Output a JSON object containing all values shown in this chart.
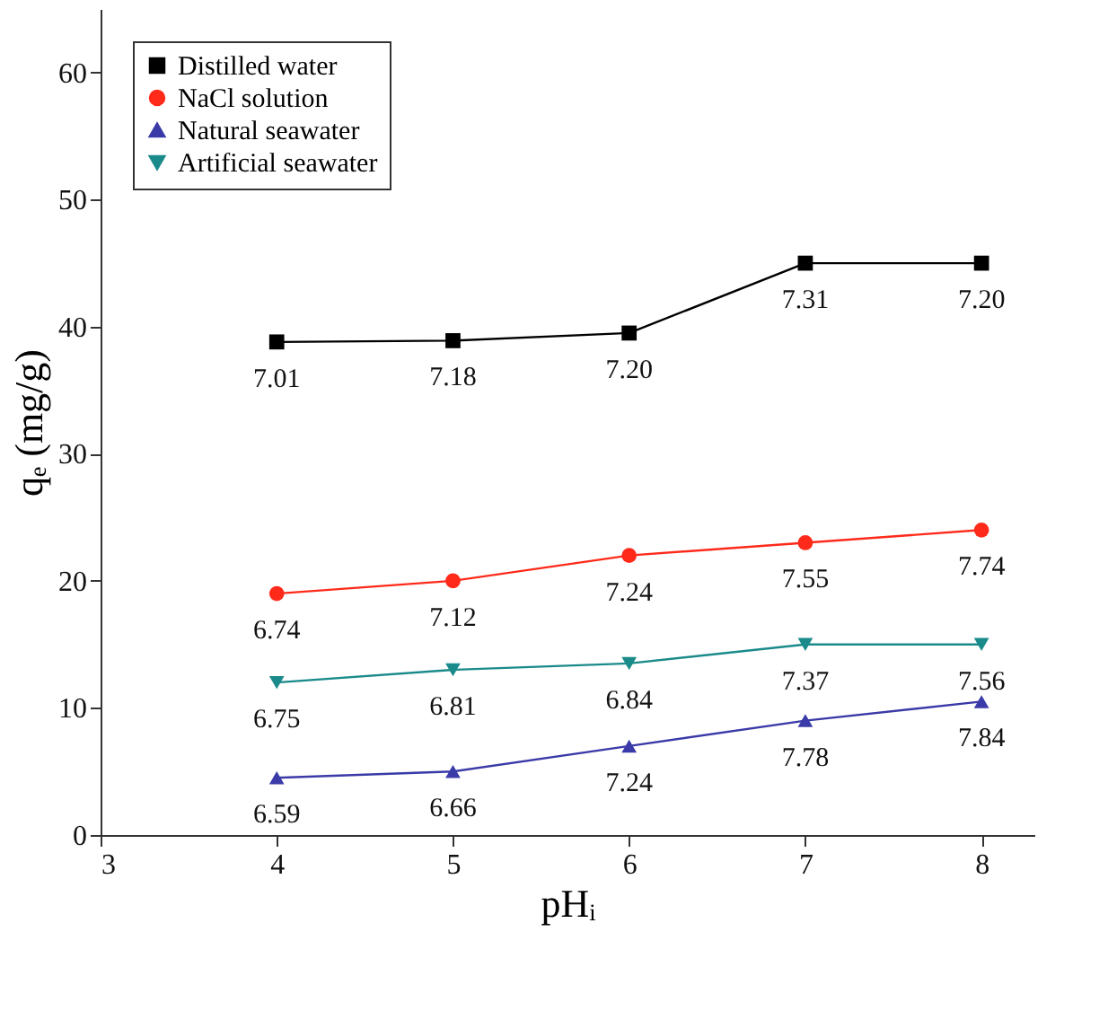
{
  "chart_data": {
    "type": "line",
    "xlabel": "pHᵢ",
    "ylabel": "qₑ (mg/g)",
    "x": [
      4,
      5,
      6,
      7,
      8
    ],
    "xlim": [
      3,
      8.3
    ],
    "xticks": [
      3,
      4,
      5,
      6,
      7,
      8
    ],
    "ylim": [
      0,
      65
    ],
    "yticks": [
      0,
      10,
      20,
      30,
      40,
      50,
      60
    ],
    "grid": false,
    "legend": "top left",
    "line_style": "solid",
    "series": [
      {
        "name": "Distilled water",
        "color": "#000000",
        "marker": "square",
        "values": [
          38.8,
          38.9,
          39.5,
          45,
          45
        ]
      },
      {
        "name": "NaCl solution",
        "color": "#ff2a1a",
        "marker": "circle",
        "values": [
          19,
          20,
          22,
          23,
          24
        ]
      },
      {
        "name": "Natural seawater",
        "color": "#3a3aa8",
        "marker": "triangle",
        "values": [
          4.5,
          5,
          7,
          9,
          10.5
        ]
      },
      {
        "name": "Artificial seawater",
        "color": "#1a8a8a",
        "marker": "triangle-down",
        "values": [
          12,
          13,
          13.5,
          15,
          15
        ]
      }
    ],
    "annotations": [
      {
        "text": "7.01",
        "x": 4,
        "y": 38.8
      },
      {
        "text": "7.18",
        "x": 5,
        "y": 38.9
      },
      {
        "text": "7.20",
        "x": 6,
        "y": 39.5
      },
      {
        "text": "7.31",
        "x": 7,
        "y": 45
      },
      {
        "text": "7.20",
        "x": 8,
        "y": 45
      },
      {
        "text": "6.74",
        "x": 4,
        "y": 19
      },
      {
        "text": "7.12",
        "x": 5,
        "y": 20
      },
      {
        "text": "7.24",
        "x": 6,
        "y": 22
      },
      {
        "text": "7.55",
        "x": 7,
        "y": 23
      },
      {
        "text": "7.74",
        "x": 8,
        "y": 24
      },
      {
        "text": "6.59",
        "x": 4,
        "y": 4.5
      },
      {
        "text": "6.66",
        "x": 5,
        "y": 5
      },
      {
        "text": "7.24",
        "x": 6,
        "y": 7
      },
      {
        "text": "7.78",
        "x": 7,
        "y": 9
      },
      {
        "text": "7.84",
        "x": 8,
        "y": 10.5
      },
      {
        "text": "6.75",
        "x": 4,
        "y": 12
      },
      {
        "text": "6.81",
        "x": 5,
        "y": 13
      },
      {
        "text": "6.84",
        "x": 6,
        "y": 13.5
      },
      {
        "text": "7.37",
        "x": 7,
        "y": 15
      },
      {
        "text": "7.56",
        "x": 8,
        "y": 15
      }
    ]
  }
}
